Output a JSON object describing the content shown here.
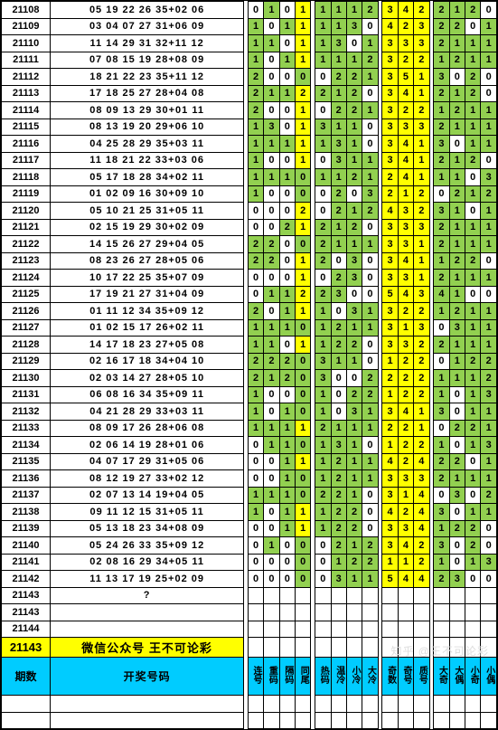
{
  "promo_text": "微信公众号 王不可论彩",
  "header_period": "期数",
  "header_nums": "开奖号码",
  "col_labels": [
    "连号",
    "重码",
    "隔码",
    "同尾",
    "热码",
    "温冷",
    "小冷",
    "大冷",
    "奇数",
    "奇号",
    "质号",
    "大奇",
    "大偶",
    "小奇",
    "小偶"
  ],
  "col_bg": [
    "g",
    "g",
    "g",
    "y",
    "g",
    "g",
    "g",
    "g",
    "y",
    "y",
    "y",
    "g",
    "g",
    "g",
    "g"
  ],
  "blank_periods": [
    "21143",
    "21144"
  ],
  "promo_period": "21143",
  "watermark": "知乎 @王不可论彩",
  "rows": [
    {
      "p": "21108",
      "n": "05 19 22 26 35+02 06",
      "v": [
        0,
        1,
        0,
        1,
        1,
        1,
        1,
        2,
        3,
        4,
        2,
        2,
        1,
        2,
        0
      ]
    },
    {
      "p": "21109",
      "n": "03 04 07 27 31+06 09",
      "v": [
        1,
        0,
        1,
        1,
        1,
        1,
        3,
        0,
        4,
        2,
        3,
        2,
        2,
        0,
        1
      ]
    },
    {
      "p": "21110",
      "n": "11 14 29 31 32+11 12",
      "v": [
        1,
        1,
        0,
        1,
        1,
        3,
        0,
        1,
        3,
        3,
        3,
        2,
        1,
        1,
        1
      ]
    },
    {
      "p": "21111",
      "n": "07 08 15 19 28+08 09",
      "v": [
        1,
        0,
        1,
        1,
        1,
        1,
        1,
        2,
        3,
        2,
        2,
        1,
        2,
        1,
        1
      ]
    },
    {
      "p": "21112",
      "n": "18 21 22 23 35+11 12",
      "v": [
        2,
        0,
        0,
        0,
        0,
        2,
        2,
        1,
        3,
        5,
        1,
        3,
        0,
        2,
        0
      ]
    },
    {
      "p": "21113",
      "n": "17 18 25 27 28+04 08",
      "v": [
        2,
        1,
        1,
        2,
        2,
        1,
        2,
        0,
        3,
        4,
        1,
        2,
        1,
        2,
        0
      ]
    },
    {
      "p": "21114",
      "n": "08 09 13 29 30+01 11",
      "v": [
        2,
        0,
        0,
        1,
        0,
        2,
        2,
        1,
        3,
        2,
        2,
        1,
        2,
        1,
        1
      ]
    },
    {
      "p": "21115",
      "n": "08 13 19 20 29+06 10",
      "v": [
        1,
        3,
        0,
        1,
        3,
        1,
        1,
        0,
        3,
        3,
        3,
        2,
        1,
        1,
        1
      ]
    },
    {
      "p": "21116",
      "n": "04 25 28 29 35+03 11",
      "v": [
        1,
        1,
        1,
        1,
        1,
        3,
        1,
        0,
        3,
        4,
        1,
        3,
        0,
        1,
        1
      ]
    },
    {
      "p": "21117",
      "n": "11 18 21 22 33+03 06",
      "v": [
        1,
        0,
        0,
        1,
        0,
        3,
        1,
        1,
        3,
        4,
        1,
        2,
        1,
        2,
        0
      ]
    },
    {
      "p": "21118",
      "n": "05 17 18 28 34+02 11",
      "v": [
        1,
        1,
        1,
        0,
        1,
        1,
        2,
        1,
        2,
        4,
        1,
        1,
        1,
        0,
        3
      ]
    },
    {
      "p": "21119",
      "n": "01 02 09 16 30+09 10",
      "v": [
        1,
        0,
        0,
        0,
        0,
        2,
        0,
        3,
        2,
        1,
        2,
        0,
        2,
        1,
        2
      ]
    },
    {
      "p": "21120",
      "n": "05 10 21 25 31+05 11",
      "v": [
        0,
        0,
        0,
        2,
        0,
        2,
        1,
        2,
        4,
        3,
        2,
        3,
        1,
        0,
        1
      ]
    },
    {
      "p": "21121",
      "n": "02 15 19 29 30+02 09",
      "v": [
        0,
        0,
        2,
        1,
        2,
        1,
        2,
        0,
        3,
        3,
        3,
        2,
        1,
        1,
        1
      ]
    },
    {
      "p": "21122",
      "n": "14 15 26 27 29+04 05",
      "v": [
        2,
        2,
        0,
        0,
        2,
        1,
        1,
        1,
        3,
        3,
        1,
        2,
        1,
        1,
        1
      ]
    },
    {
      "p": "21123",
      "n": "08 23 26 27 28+05 06",
      "v": [
        2,
        2,
        0,
        1,
        2,
        0,
        3,
        0,
        3,
        4,
        1,
        1,
        2,
        2,
        0
      ]
    },
    {
      "p": "21124",
      "n": "10 17 22 25 35+07 09",
      "v": [
        0,
        0,
        0,
        1,
        0,
        2,
        3,
        0,
        3,
        3,
        1,
        2,
        1,
        1,
        1
      ]
    },
    {
      "p": "21125",
      "n": "17 19 21 27 31+04 09",
      "v": [
        0,
        1,
        1,
        2,
        2,
        3,
        0,
        0,
        5,
        4,
        3,
        4,
        1,
        0,
        0
      ]
    },
    {
      "p": "21126",
      "n": "01 11 12 34 35+09 12",
      "v": [
        2,
        0,
        1,
        1,
        1,
        0,
        3,
        1,
        3,
        2,
        2,
        1,
        2,
        1,
        1
      ]
    },
    {
      "p": "21127",
      "n": "01 02 15 17 26+02 11",
      "v": [
        1,
        1,
        1,
        0,
        1,
        2,
        1,
        1,
        3,
        1,
        3,
        0,
        3,
        1,
        1
      ]
    },
    {
      "p": "21128",
      "n": "14 17 18 23 27+05 08",
      "v": [
        1,
        1,
        0,
        1,
        1,
        2,
        2,
        0,
        3,
        3,
        2,
        2,
        1,
        1,
        1
      ]
    },
    {
      "p": "21129",
      "n": "02 16 17 18 34+04 10",
      "v": [
        2,
        2,
        2,
        0,
        3,
        1,
        1,
        0,
        1,
        2,
        2,
        0,
        1,
        2,
        2
      ]
    },
    {
      "p": "21130",
      "n": "02 03 14 27 28+05 10",
      "v": [
        2,
        1,
        2,
        0,
        3,
        0,
        0,
        2,
        2,
        2,
        2,
        1,
        1,
        1,
        2
      ]
    },
    {
      "p": "21131",
      "n": "06 08 16 34 35+09 11",
      "v": [
        1,
        0,
        0,
        0,
        1,
        0,
        2,
        2,
        1,
        2,
        2,
        1,
        0,
        1,
        3
      ]
    },
    {
      "p": "21132",
      "n": "04 21 28 29 33+03 11",
      "v": [
        1,
        0,
        1,
        0,
        1,
        0,
        3,
        1,
        3,
        4,
        1,
        3,
        0,
        1,
        1
      ]
    },
    {
      "p": "21133",
      "n": "08 09 17 26 28+06 08",
      "v": [
        1,
        1,
        1,
        1,
        2,
        1,
        1,
        1,
        2,
        2,
        1,
        0,
        2,
        2,
        1
      ]
    },
    {
      "p": "21134",
      "n": "02 06 14 19 28+01 06",
      "v": [
        0,
        1,
        1,
        0,
        1,
        3,
        1,
        0,
        1,
        2,
        2,
        1,
        0,
        1,
        3
      ]
    },
    {
      "p": "21135",
      "n": "04 07 17 29 31+05 06",
      "v": [
        0,
        0,
        1,
        1,
        1,
        2,
        1,
        1,
        4,
        2,
        4,
        2,
        2,
        0,
        1
      ]
    },
    {
      "p": "21136",
      "n": "08 12 19 27 33+02 12",
      "v": [
        0,
        0,
        1,
        0,
        1,
        2,
        1,
        1,
        3,
        3,
        3,
        2,
        1,
        1,
        1
      ]
    },
    {
      "p": "21137",
      "n": "02 07 13 14 19+04 05",
      "v": [
        1,
        1,
        1,
        0,
        2,
        2,
        1,
        0,
        3,
        1,
        4,
        0,
        3,
        0,
        2
      ]
    },
    {
      "p": "21138",
      "n": "09 11 12 15 31+05 11",
      "v": [
        1,
        0,
        1,
        1,
        1,
        2,
        2,
        0,
        4,
        2,
        4,
        3,
        0,
        1,
        1
      ]
    },
    {
      "p": "21139",
      "n": "05 13 18 23 34+08 09",
      "v": [
        0,
        0,
        1,
        1,
        1,
        2,
        2,
        0,
        3,
        3,
        4,
        1,
        2,
        2,
        0
      ]
    },
    {
      "p": "21140",
      "n": "05 24 26 33 35+09 12",
      "v": [
        0,
        1,
        0,
        0,
        0,
        2,
        1,
        2,
        3,
        4,
        2,
        3,
        0,
        2,
        0
      ]
    },
    {
      "p": "21141",
      "n": "02 08 16 29 34+05 11",
      "v": [
        0,
        0,
        0,
        0,
        0,
        1,
        2,
        2,
        1,
        1,
        2,
        1,
        0,
        1,
        3
      ]
    },
    {
      "p": "21142",
      "n": "11 13 17 19 25+02 09",
      "v": [
        0,
        0,
        0,
        0,
        0,
        3,
        1,
        1,
        5,
        4,
        4,
        2,
        3,
        0,
        0
      ]
    },
    {
      "p": "21143",
      "n": "?",
      "v": [
        "",
        "",
        "",
        "",
        "",
        "",
        "",
        "",
        "",
        "",
        "",
        "",
        "",
        "",
        ""
      ]
    }
  ]
}
